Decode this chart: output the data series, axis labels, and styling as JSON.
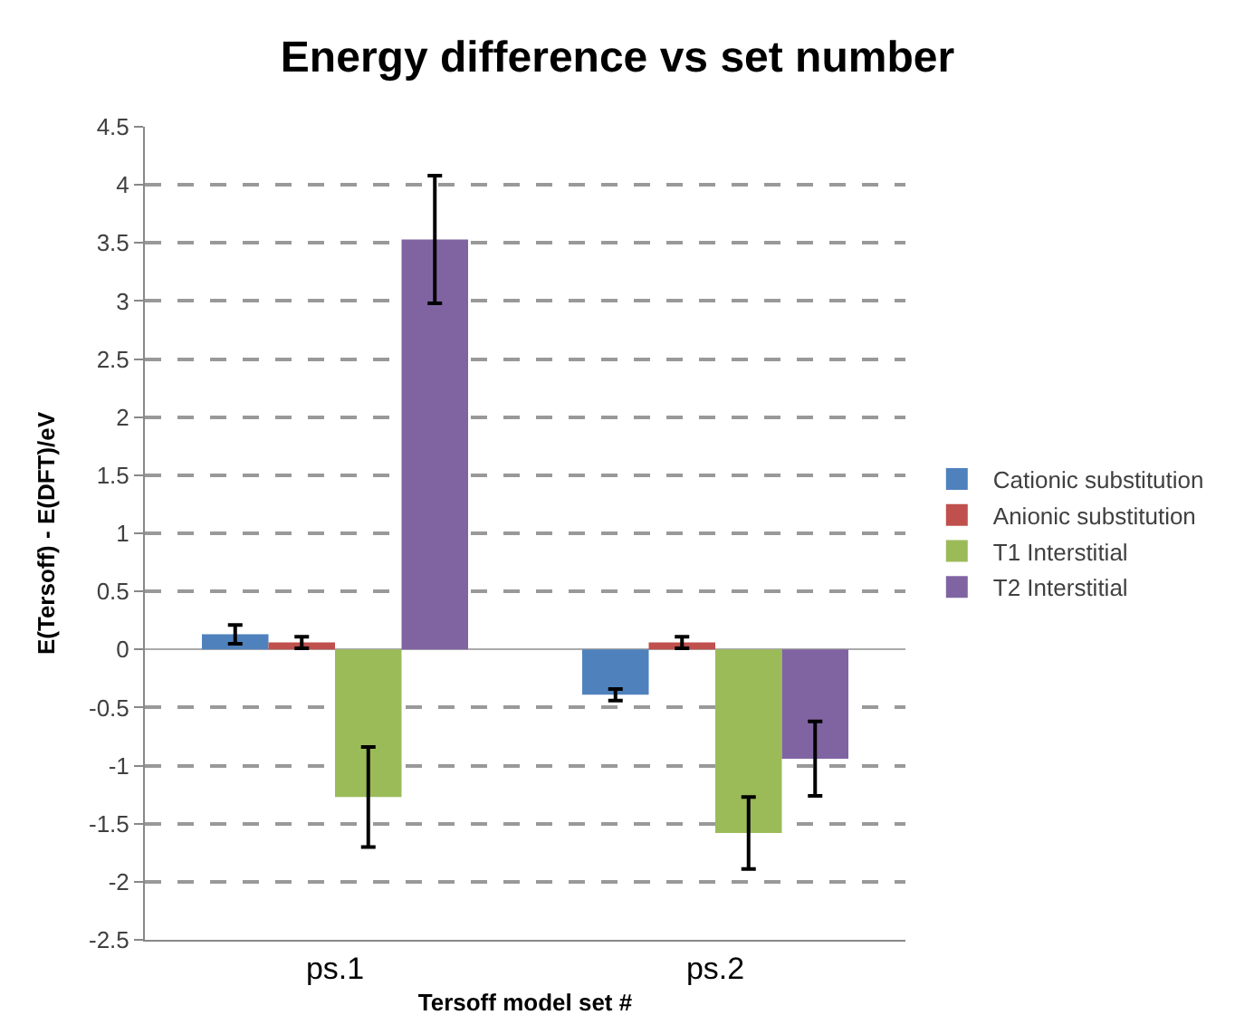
{
  "chart_data": {
    "type": "bar",
    "title": "Energy difference vs set number",
    "xlabel": "Tersoff model set #",
    "ylabel": "E(Tersoff) - E(DFT)/eV",
    "categories": [
      "ps.1",
      "ps.2"
    ],
    "series": [
      {
        "name": "Cationic substitution",
        "color": "#4f81bd",
        "values": [
          0.13,
          -0.39
        ],
        "errors": [
          0.08,
          0.05
        ]
      },
      {
        "name": "Anionic substitution",
        "color": "#c0504d",
        "values": [
          0.06,
          0.06
        ],
        "errors": [
          0.05,
          0.05
        ]
      },
      {
        "name": "T1 Interstitial",
        "color": "#9bbb59",
        "values": [
          -1.27,
          -1.58
        ],
        "errors": [
          0.43,
          0.31
        ]
      },
      {
        "name": "T2 Interstitial",
        "color": "#8064a2",
        "values": [
          3.53,
          -0.94
        ],
        "errors": [
          0.55,
          0.32
        ]
      }
    ],
    "ylim": [
      -2.5,
      4.5
    ],
    "yticks": [
      -2.5,
      -2,
      -1.5,
      -1,
      -0.5,
      0,
      0.5,
      1,
      1.5,
      2,
      2.5,
      3,
      3.5,
      4,
      4.5
    ],
    "grid": "y",
    "legend": "right"
  }
}
